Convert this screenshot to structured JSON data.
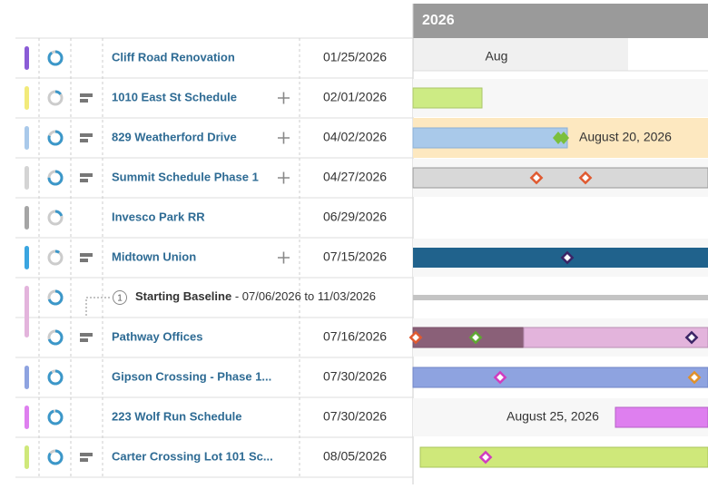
{
  "timeline": {
    "year": "2026",
    "month": "Aug"
  },
  "rows": [
    {
      "name": "Cliff Road Renovation",
      "date": "01/25/2026",
      "color": "#8a5cd6"
    },
    {
      "name": "1010 East St Schedule",
      "date": "02/01/2026",
      "color": "#f2ea7a"
    },
    {
      "name": "829 Weatherford Drive",
      "date": "04/02/2026",
      "color": "#a9c9ea"
    },
    {
      "name": "Summit Schedule Phase 1",
      "date": "04/27/2026",
      "color": "#d4d4d4"
    },
    {
      "name": "Invesco Park RR",
      "date": "06/29/2026",
      "color": "#a5a5a5"
    },
    {
      "name": "Midtown Union",
      "date": "07/15/2026",
      "color": "#3aa5e0"
    },
    {
      "name": "Pathway Offices",
      "date": "07/16/2026",
      "color": "#e3b4dc"
    },
    {
      "name": "Gipson Crossing - Phase 1...",
      "date": "07/30/2026",
      "color": "#8ea3e0"
    },
    {
      "name": "223 Wolf Run Schedule",
      "date": "07/30/2026",
      "color": "#de7fef"
    },
    {
      "name": "Carter Crossing Lot 101 Sc...",
      "date": "08/05/2026",
      "color": "#cfe87a"
    }
  ],
  "baseline": {
    "number": "1",
    "label": "Starting Baseline",
    "range": " - 07/06/2026 to 11/03/2026"
  },
  "milestones": [
    "August 20, 2026",
    "August 25, 2026"
  ]
}
